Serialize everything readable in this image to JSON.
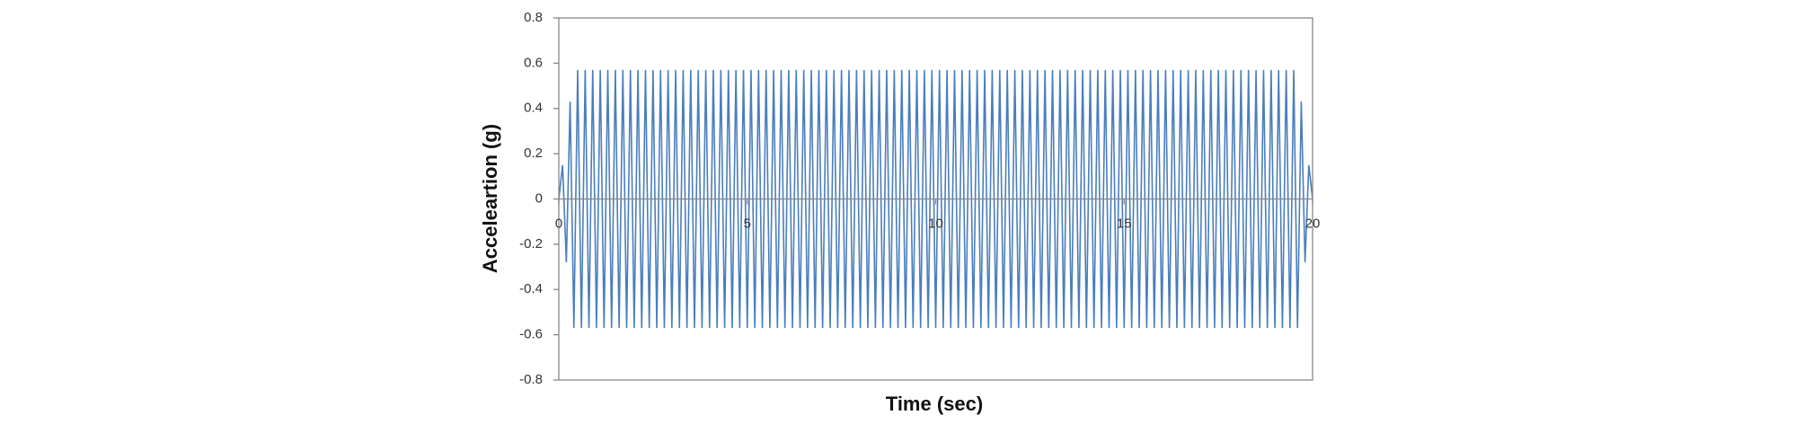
{
  "chart_data": {
    "type": "line",
    "xlabel": "Time (sec)",
    "ylabel": "Acceleartion (g)",
    "xlim": [
      0,
      20
    ],
    "xticks": [
      0,
      5,
      10,
      15,
      20
    ],
    "ylim": [
      -0.8,
      0.8
    ],
    "yticks": [
      -0.8,
      -0.6,
      -0.4,
      -0.2,
      0,
      0.2,
      0.4,
      0.6,
      0.8
    ],
    "grid": false,
    "series": [
      {
        "color": "#4a7ebb",
        "x": [
          0,
          0.1,
          0.2,
          0.3,
          0.4,
          0.5,
          0.6,
          0.7,
          0.8,
          0.9,
          1,
          1.1,
          1.2,
          1.3,
          1.4,
          1.5,
          1.6,
          1.7,
          1.8,
          1.9,
          2,
          2.1,
          2.2,
          2.3,
          2.4,
          2.5,
          2.6,
          2.7,
          2.8,
          2.9,
          3,
          3.1,
          3.2,
          3.3,
          3.4,
          3.5,
          3.6,
          3.7,
          3.8,
          3.9,
          4,
          4.1,
          4.2,
          4.3,
          4.4,
          4.5,
          4.6,
          4.7,
          4.8,
          4.9,
          5,
          5.1,
          5.2,
          5.3,
          5.4,
          5.5,
          5.6,
          5.7,
          5.8,
          5.9,
          6,
          6.1,
          6.2,
          6.3,
          6.4,
          6.5,
          6.6,
          6.7,
          6.8,
          6.9,
          7,
          7.1,
          7.2,
          7.3,
          7.4,
          7.5,
          7.6,
          7.7,
          7.8,
          7.9,
          8,
          8.1,
          8.2,
          8.3,
          8.4,
          8.5,
          8.6,
          8.7,
          8.8,
          8.9,
          9,
          9.1,
          9.2,
          9.3,
          9.4,
          9.5,
          9.6,
          9.7,
          9.8,
          9.9,
          10,
          10.1,
          10.2,
          10.3,
          10.4,
          10.5,
          10.6,
          10.7,
          10.8,
          10.9,
          11,
          11.1,
          11.2,
          11.3,
          11.4,
          11.5,
          11.6,
          11.7,
          11.8,
          11.9,
          12,
          12.1,
          12.2,
          12.3,
          12.4,
          12.5,
          12.6,
          12.7,
          12.8,
          12.9,
          13,
          13.1,
          13.2,
          13.3,
          13.4,
          13.5,
          13.6,
          13.7,
          13.8,
          13.9,
          14,
          14.1,
          14.2,
          14.3,
          14.4,
          14.5,
          14.6,
          14.7,
          14.8,
          14.9,
          15,
          15.1,
          15.2,
          15.3,
          15.4,
          15.5,
          15.6,
          15.7,
          15.8,
          15.9,
          16,
          16.1,
          16.2,
          16.3,
          16.4,
          16.5,
          16.6,
          16.7,
          16.8,
          16.9,
          17,
          17.1,
          17.2,
          17.3,
          17.4,
          17.5,
          17.6,
          17.7,
          17.8,
          17.9,
          18,
          18.1,
          18.2,
          18.3,
          18.4,
          18.5,
          18.6,
          18.7,
          18.8,
          18.9,
          19,
          19.1,
          19.2,
          19.3,
          19.4,
          19.5,
          19.6,
          19.7,
          19.8,
          19.9,
          20
        ],
        "values": [
          0,
          0.15,
          -0.28,
          0.43,
          -0.57,
          0.57,
          -0.57,
          0.57,
          -0.57,
          0.57,
          -0.57,
          0.57,
          -0.57,
          0.57,
          -0.57,
          0.57,
          -0.57,
          0.57,
          -0.57,
          0.57,
          -0.57,
          0.57,
          -0.57,
          0.57,
          -0.57,
          0.57,
          -0.57,
          0.57,
          -0.57,
          0.57,
          -0.57,
          0.57,
          -0.57,
          0.57,
          -0.57,
          0.57,
          -0.57,
          0.57,
          -0.57,
          0.57,
          -0.57,
          0.57,
          -0.57,
          0.57,
          -0.57,
          0.57,
          -0.57,
          0.57,
          -0.57,
          0.57,
          -0.57,
          0.57,
          -0.57,
          0.57,
          -0.57,
          0.57,
          -0.57,
          0.57,
          -0.57,
          0.57,
          -0.57,
          0.57,
          -0.57,
          0.57,
          -0.57,
          0.57,
          -0.57,
          0.57,
          -0.57,
          0.57,
          -0.57,
          0.57,
          -0.57,
          0.57,
          -0.57,
          0.57,
          -0.57,
          0.57,
          -0.57,
          0.57,
          -0.57,
          0.57,
          -0.57,
          0.57,
          -0.57,
          0.57,
          -0.57,
          0.57,
          -0.57,
          0.57,
          -0.57,
          0.57,
          -0.57,
          0.57,
          -0.57,
          0.57,
          -0.57,
          0.57,
          -0.57,
          0.57,
          -0.57,
          0.57,
          -0.57,
          0.57,
          -0.57,
          0.57,
          -0.57,
          0.57,
          -0.57,
          0.57,
          -0.57,
          0.57,
          -0.57,
          0.57,
          -0.57,
          0.57,
          -0.57,
          0.57,
          -0.57,
          0.57,
          -0.57,
          0.57,
          -0.57,
          0.57,
          -0.57,
          0.57,
          -0.57,
          0.57,
          -0.57,
          0.57,
          -0.57,
          0.57,
          -0.57,
          0.57,
          -0.57,
          0.57,
          -0.57,
          0.57,
          -0.57,
          0.57,
          -0.57,
          0.57,
          -0.57,
          0.57,
          -0.57,
          0.57,
          -0.57,
          0.57,
          -0.57,
          0.57,
          -0.57,
          0.57,
          -0.57,
          0.57,
          -0.57,
          0.57,
          -0.57,
          0.57,
          -0.57,
          0.57,
          -0.57,
          0.57,
          -0.57,
          0.57,
          -0.57,
          0.57,
          -0.57,
          0.57,
          -0.57,
          0.57,
          -0.57,
          0.57,
          -0.57,
          0.57,
          -0.57,
          0.57,
          -0.57,
          0.57,
          -0.57,
          0.57,
          -0.57,
          0.57,
          -0.57,
          0.57,
          -0.57,
          0.57,
          -0.57,
          0.57,
          -0.57,
          0.57,
          -0.57,
          0.57,
          -0.57,
          0.57,
          -0.57,
          0.57,
          -0.57,
          0.43,
          -0.28,
          0.15,
          0
        ]
      }
    ]
  }
}
